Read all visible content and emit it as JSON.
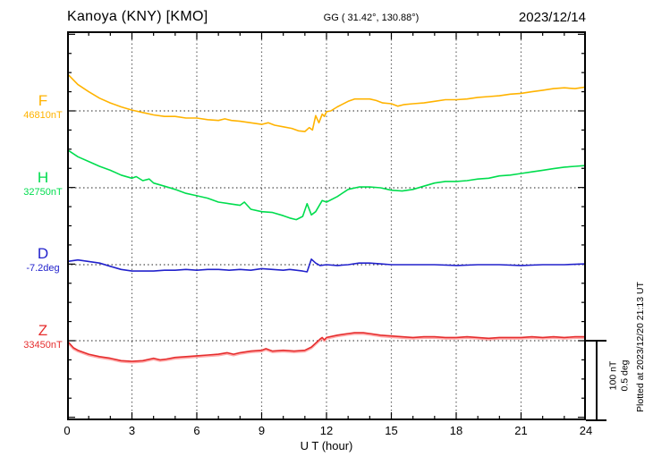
{
  "header": {
    "station": "Kanoya (KNY)  [KMO]",
    "coords": "GG ( 31.42°, 130.88°)",
    "date": "2023/12/14"
  },
  "xaxis": {
    "title": "U T (hour)",
    "tick_labels": [
      "0",
      "3",
      "6",
      "9",
      "12",
      "15",
      "18",
      "21",
      "24"
    ]
  },
  "scalebar": {
    "label": "100 nT\n0.5 deg"
  },
  "plotted_note": "Plotted at 2023/12/20 21:13 UT",
  "channels": [
    {
      "id": "F",
      "label": "F",
      "base_label": "46810nT",
      "color": "#FFB300"
    },
    {
      "id": "H",
      "label": "H",
      "base_label": "32750nT",
      "color": "#00DD4E"
    },
    {
      "id": "D",
      "label": "D",
      "base_label": "-7.2deg",
      "color": "#2222CC"
    },
    {
      "id": "Z",
      "label": "Z",
      "base_label": "33450nT",
      "color": "#E62E2E"
    }
  ],
  "chart_data": {
    "type": "line",
    "title": "Kanoya (KNY) [KMO] magnetogram 2023/12/14",
    "xlabel": "U T (hour)",
    "x_range": [
      0,
      24
    ],
    "x_ticks": [
      0,
      3,
      6,
      9,
      12,
      15,
      18,
      21,
      24
    ],
    "grid": "dotted vertical every 3h, dotted horizontal at each channel baseline",
    "scale_indicator": {
      "nT_per_div": 100,
      "deg_per_div": 0.5
    },
    "series": [
      {
        "name": "F",
        "unit": "nT",
        "baseline_value": 46810,
        "color": "#FFB300",
        "points": [
          [
            0,
            47
          ],
          [
            0.5,
            33
          ],
          [
            1,
            24
          ],
          [
            1.5,
            16
          ],
          [
            2,
            10
          ],
          [
            2.5,
            5
          ],
          [
            3,
            1
          ],
          [
            3.5,
            -2
          ],
          [
            4,
            -5
          ],
          [
            4.5,
            -7
          ],
          [
            5,
            -7
          ],
          [
            5.5,
            -9
          ],
          [
            6,
            -9
          ],
          [
            6.5,
            -11
          ],
          [
            7,
            -12
          ],
          [
            7.3,
            -10
          ],
          [
            7.6,
            -12
          ],
          [
            8,
            -13
          ],
          [
            8.5,
            -15
          ],
          [
            9,
            -17
          ],
          [
            9.3,
            -15
          ],
          [
            9.6,
            -18
          ],
          [
            10,
            -20
          ],
          [
            10.4,
            -22
          ],
          [
            10.7,
            -25
          ],
          [
            11,
            -26
          ],
          [
            11.2,
            -21
          ],
          [
            11.35,
            -24
          ],
          [
            11.5,
            -6
          ],
          [
            11.65,
            -15
          ],
          [
            11.8,
            -4
          ],
          [
            11.9,
            -7
          ],
          [
            12,
            -1
          ],
          [
            12.2,
            0
          ],
          [
            12.5,
            5
          ],
          [
            13,
            12
          ],
          [
            13.3,
            15
          ],
          [
            13.6,
            15
          ],
          [
            14,
            15
          ],
          [
            14.3,
            13
          ],
          [
            14.6,
            10
          ],
          [
            15,
            9
          ],
          [
            15.3,
            6
          ],
          [
            15.6,
            8
          ],
          [
            16,
            9
          ],
          [
            16.5,
            10
          ],
          [
            17,
            12
          ],
          [
            17.5,
            14
          ],
          [
            18,
            14
          ],
          [
            18.5,
            15
          ],
          [
            19,
            17
          ],
          [
            19.5,
            18
          ],
          [
            20,
            19
          ],
          [
            20.5,
            21
          ],
          [
            21,
            22
          ],
          [
            21.5,
            24
          ],
          [
            22,
            26
          ],
          [
            22.5,
            28
          ],
          [
            23,
            29
          ],
          [
            23.5,
            28
          ],
          [
            24,
            30
          ]
        ]
      },
      {
        "name": "H",
        "unit": "nT",
        "baseline_value": 32750,
        "color": "#00DD4E",
        "points": [
          [
            0,
            48
          ],
          [
            0.5,
            39
          ],
          [
            1,
            33
          ],
          [
            1.5,
            27
          ],
          [
            2,
            22
          ],
          [
            2.5,
            16
          ],
          [
            3,
            12
          ],
          [
            3.2,
            14
          ],
          [
            3.5,
            9
          ],
          [
            3.8,
            11
          ],
          [
            4,
            6
          ],
          [
            4.5,
            2
          ],
          [
            5,
            -2
          ],
          [
            5.5,
            -7
          ],
          [
            6,
            -10
          ],
          [
            6.5,
            -13
          ],
          [
            7,
            -18
          ],
          [
            7.5,
            -20
          ],
          [
            8,
            -22
          ],
          [
            8.2,
            -18
          ],
          [
            8.5,
            -27
          ],
          [
            9,
            -30
          ],
          [
            9.5,
            -31
          ],
          [
            10,
            -35
          ],
          [
            10.3,
            -38
          ],
          [
            10.6,
            -40
          ],
          [
            10.9,
            -36
          ],
          [
            11.1,
            -20
          ],
          [
            11.3,
            -34
          ],
          [
            11.5,
            -30
          ],
          [
            11.8,
            -16
          ],
          [
            12,
            -18
          ],
          [
            12.5,
            -11
          ],
          [
            13,
            -2
          ],
          [
            13.5,
            1
          ],
          [
            14,
            1
          ],
          [
            14.5,
            0
          ],
          [
            15,
            -3
          ],
          [
            15.5,
            -4
          ],
          [
            16,
            -2
          ],
          [
            16.5,
            2
          ],
          [
            17,
            6
          ],
          [
            17.5,
            8
          ],
          [
            18,
            8
          ],
          [
            18.5,
            9
          ],
          [
            19,
            11
          ],
          [
            19.5,
            12
          ],
          [
            20,
            15
          ],
          [
            20.5,
            16
          ],
          [
            21,
            18
          ],
          [
            21.5,
            20
          ],
          [
            22,
            22
          ],
          [
            22.5,
            24
          ],
          [
            23,
            26
          ],
          [
            23.5,
            27
          ],
          [
            24,
            28
          ]
        ]
      },
      {
        "name": "D",
        "unit": "deg",
        "baseline_value": -7.2,
        "color": "#2222CC",
        "points": [
          [
            0,
            0.02
          ],
          [
            0.5,
            0.03
          ],
          [
            1,
            0.02
          ],
          [
            1.5,
            0.01
          ],
          [
            2,
            -0.01
          ],
          [
            2.5,
            -0.03
          ],
          [
            3,
            -0.04
          ],
          [
            3.5,
            -0.04
          ],
          [
            4,
            -0.04
          ],
          [
            4.5,
            -0.035
          ],
          [
            5,
            -0.035
          ],
          [
            5.5,
            -0.03
          ],
          [
            6,
            -0.035
          ],
          [
            6.5,
            -0.03
          ],
          [
            7,
            -0.03
          ],
          [
            7.5,
            -0.035
          ],
          [
            8,
            -0.03
          ],
          [
            8.5,
            -0.035
          ],
          [
            9,
            -0.025
          ],
          [
            9.5,
            -0.03
          ],
          [
            10,
            -0.035
          ],
          [
            10.3,
            -0.03
          ],
          [
            10.6,
            -0.035
          ],
          [
            10.9,
            -0.04
          ],
          [
            11.1,
            -0.045
          ],
          [
            11.3,
            0.035
          ],
          [
            11.5,
            0.01
          ],
          [
            11.7,
            -0.005
          ],
          [
            12,
            0
          ],
          [
            12.5,
            -0.005
          ],
          [
            13,
            0
          ],
          [
            13.5,
            0.01
          ],
          [
            14,
            0.01
          ],
          [
            14.5,
            0.005
          ],
          [
            15,
            0
          ],
          [
            16,
            0
          ],
          [
            17,
            0
          ],
          [
            18,
            -0.005
          ],
          [
            19,
            0
          ],
          [
            20,
            0
          ],
          [
            21,
            -0.005
          ],
          [
            22,
            0
          ],
          [
            23,
            0
          ],
          [
            24,
            0.005
          ]
        ]
      },
      {
        "name": "Z",
        "unit": "nT",
        "baseline_value": 33450,
        "color": "#E62E2E",
        "points": [
          [
            0,
            0
          ],
          [
            0.3,
            -9
          ],
          [
            0.5,
            -12
          ],
          [
            1,
            -17
          ],
          [
            1.5,
            -20
          ],
          [
            2,
            -22
          ],
          [
            2.5,
            -25
          ],
          [
            3,
            -26
          ],
          [
            3.5,
            -25
          ],
          [
            4,
            -22
          ],
          [
            4.3,
            -24
          ],
          [
            4.6,
            -23
          ],
          [
            5,
            -21
          ],
          [
            5.5,
            -20
          ],
          [
            6,
            -19
          ],
          [
            6.5,
            -18
          ],
          [
            7,
            -17
          ],
          [
            7.4,
            -15
          ],
          [
            7.7,
            -17
          ],
          [
            8,
            -15
          ],
          [
            8.5,
            -13
          ],
          [
            9,
            -12
          ],
          [
            9.2,
            -10
          ],
          [
            9.5,
            -13
          ],
          [
            10,
            -12
          ],
          [
            10.5,
            -13
          ],
          [
            11,
            -12
          ],
          [
            11.3,
            -8
          ],
          [
            11.5,
            -3
          ],
          [
            11.7,
            2
          ],
          [
            11.8,
            4
          ],
          [
            11.9,
            1
          ],
          [
            12,
            4
          ],
          [
            12.5,
            7
          ],
          [
            13,
            9
          ],
          [
            13.3,
            10
          ],
          [
            13.7,
            10
          ],
          [
            14,
            9
          ],
          [
            14.5,
            7
          ],
          [
            15,
            6
          ],
          [
            15.5,
            5
          ],
          [
            16,
            4
          ],
          [
            16.5,
            5
          ],
          [
            17,
            5
          ],
          [
            17.5,
            4
          ],
          [
            18,
            4
          ],
          [
            18.5,
            5
          ],
          [
            19,
            4
          ],
          [
            19.5,
            3
          ],
          [
            20,
            4
          ],
          [
            20.5,
            4
          ],
          [
            21,
            4
          ],
          [
            21.5,
            5
          ],
          [
            22,
            4
          ],
          [
            22.5,
            5
          ],
          [
            23,
            4
          ],
          [
            23.5,
            5
          ],
          [
            24,
            5
          ]
        ]
      }
    ]
  }
}
